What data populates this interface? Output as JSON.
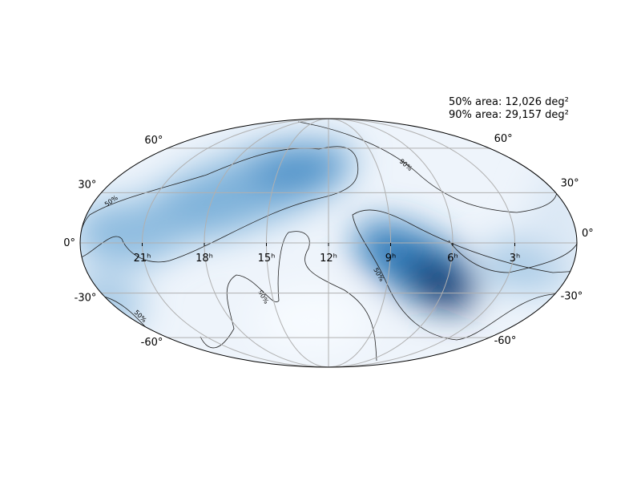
{
  "annotation": [
    "50% area: 12,026 deg²",
    "90% area: 29,157 deg²"
  ],
  "ra_labels": [
    "21ʰ",
    "18ʰ",
    "15ʰ",
    "12ʰ",
    "9ʰ",
    "6ʰ",
    "3ʰ"
  ],
  "dec_labels_left": [
    "60°",
    "30°",
    "0°",
    "-30°",
    "-60°"
  ],
  "dec_labels_right": [
    "60°",
    "30°",
    "0°",
    "-30°",
    "-60°"
  ],
  "contour_labels": [
    "50%",
    "90%",
    "50%",
    "90%",
    "50%"
  ]
}
